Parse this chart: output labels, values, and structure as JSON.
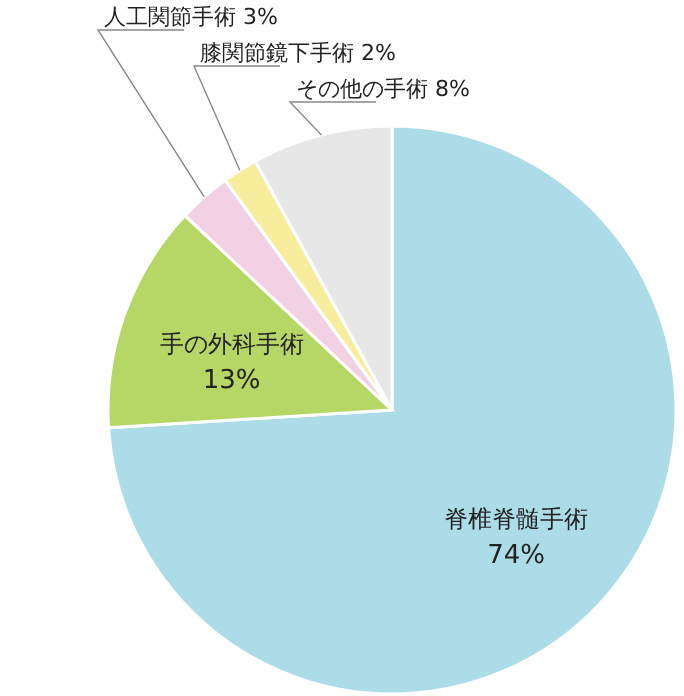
{
  "chart_data": {
    "type": "pie",
    "categories": [
      "脊椎脊髄手術",
      "手の外科手術",
      "人工関節手術",
      "膝関節鏡下手術",
      "その他の手術"
    ],
    "values": [
      74,
      13,
      3,
      2,
      8
    ],
    "value_labels": [
      "74%",
      "13%",
      "3%",
      "2%",
      "8%"
    ],
    "colors": [
      "#acdce7",
      "#b6d665",
      "#f1d1e3",
      "#f8ed9c",
      "#e7e7e7"
    ]
  }
}
